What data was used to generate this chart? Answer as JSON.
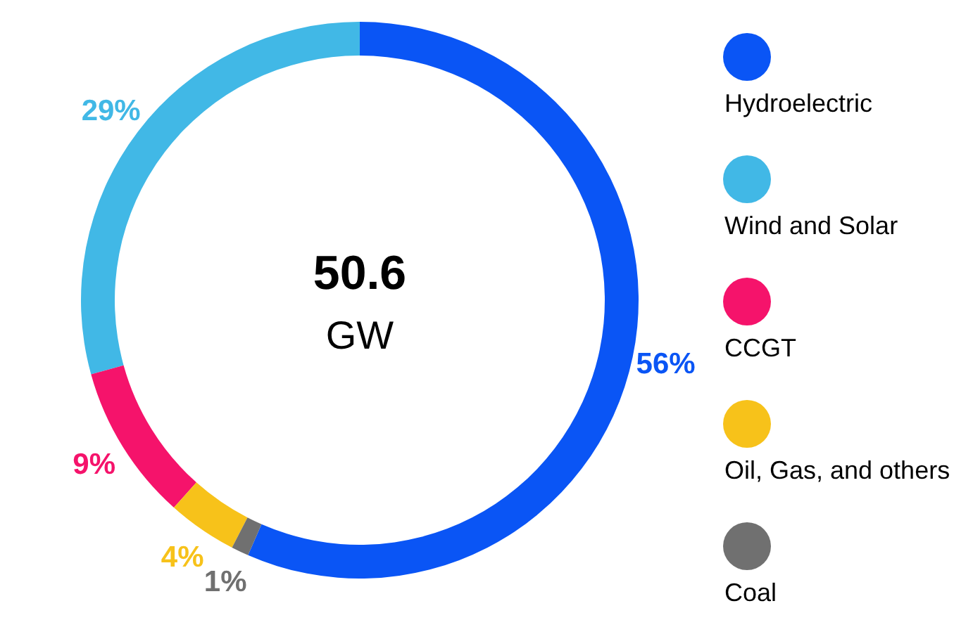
{
  "chart_data": {
    "type": "donut",
    "categories": [
      "Hydroelectric",
      "Wind and Solar",
      "CCGT",
      "Oil, Gas, and others",
      "Coal"
    ],
    "values": [
      56,
      29,
      9,
      4,
      1
    ],
    "colors": [
      "#0a55f5",
      "#41b8e6",
      "#f5136b",
      "#f7c21a",
      "#707070"
    ],
    "value_labels": [
      "56%",
      "29%",
      "9%",
      "4%",
      "1%"
    ],
    "legend": "right",
    "annotations": [
      "50.6",
      "GW"
    ]
  }
}
